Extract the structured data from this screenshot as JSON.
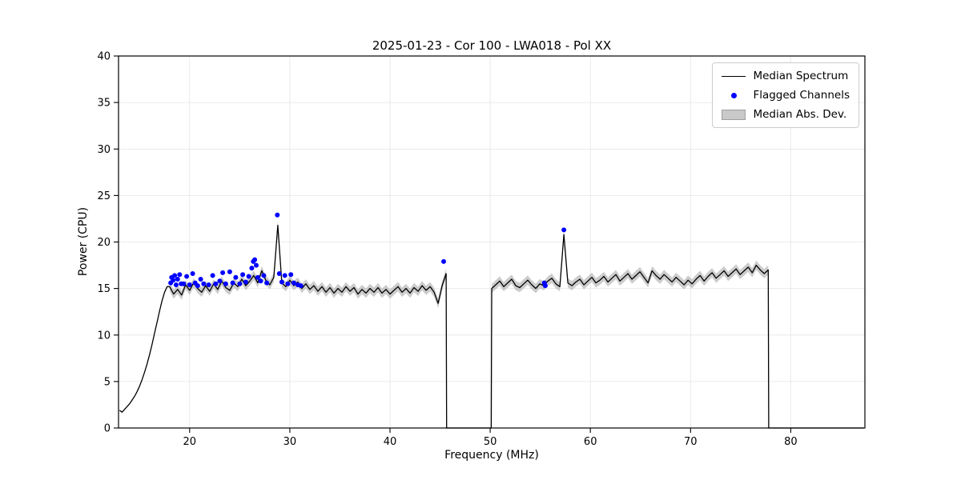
{
  "chart_data": {
    "type": "line",
    "title": "2025-01-23 - Cor 100 - LWA018 - Pol XX",
    "xlabel": "Frequency (MHz)",
    "ylabel": "Power (CPU)",
    "xlim": [
      12.9,
      87.4
    ],
    "ylim": [
      0,
      40
    ],
    "xticks": [
      20,
      30,
      40,
      50,
      60,
      70,
      80
    ],
    "yticks": [
      0,
      5,
      10,
      15,
      20,
      25,
      30,
      35,
      40
    ],
    "grid": true,
    "line_color": "#000000",
    "flag_color": "#0000ff",
    "band_color": "#aaaaaa",
    "band_halfwidth": 0.5,
    "legend": [
      {
        "label": "Median Spectrum",
        "type": "line",
        "color": "#000000"
      },
      {
        "label": "Flagged Channels",
        "type": "dot",
        "color": "#0000ff"
      },
      {
        "label": "Median Abs. Dev.",
        "type": "band",
        "color": "#aaaaaa"
      }
    ],
    "segments": [
      {
        "name": "low-frequency-ramp",
        "x0": 13.0,
        "dx": 0.25,
        "band": false,
        "y": [
          1.9,
          1.7,
          2.0,
          2.3,
          2.6,
          3.0,
          3.4,
          3.9,
          4.5,
          5.2,
          6.0,
          6.9,
          7.9,
          9.0,
          10.2,
          11.4,
          12.6,
          13.7,
          14.6,
          15.2
        ]
      },
      {
        "name": "plateau-1",
        "x0": 18.0,
        "dx": 0.4,
        "band": true,
        "y": [
          15.2,
          14.4,
          14.9,
          14.3,
          15.4,
          14.8,
          15.6,
          15.0,
          14.6,
          15.3,
          14.7,
          15.5,
          14.9,
          15.8,
          15.1,
          14.8,
          15.6,
          15.2,
          16.0,
          15.3,
          15.8,
          16.4,
          15.6,
          16.9,
          15.9,
          15.4,
          16.2,
          21.8,
          15.6,
          15.2,
          15.9,
          15.3,
          15.7,
          15.0,
          15.5,
          14.9,
          15.3,
          14.7,
          15.2,
          14.6,
          15.1,
          14.5,
          15.0,
          14.6,
          15.2,
          14.7,
          15.1,
          14.4,
          14.9,
          14.5,
          15.0,
          14.6,
          15.1,
          14.5,
          14.9,
          14.4,
          14.8,
          15.2,
          14.6,
          15.0,
          14.5,
          15.1,
          14.7,
          15.3,
          14.8,
          15.2,
          14.6,
          13.4,
          15.3,
          16.6
        ]
      },
      {
        "name": "notch-1",
        "x0": 45.65,
        "dx": 0.445,
        "band": false,
        "y": [
          0,
          0,
          0,
          0,
          0,
          0,
          0,
          0,
          0,
          0,
          0
        ]
      },
      {
        "name": "plateau-2",
        "x0": 50.15,
        "dx": 0.4,
        "band": true,
        "y": [
          15.0,
          15.4,
          15.8,
          15.2,
          15.6,
          16.0,
          15.3,
          15.1,
          15.5,
          15.9,
          15.4,
          15.0,
          15.5,
          15.3,
          15.8,
          16.1,
          15.5,
          15.2,
          20.8,
          15.6,
          15.3,
          15.7,
          16.0,
          15.4,
          15.8,
          16.2,
          15.6,
          15.9,
          16.3,
          15.7,
          16.1,
          16.5,
          15.8,
          16.2,
          16.6,
          16.0,
          16.4,
          16.8,
          16.2,
          15.6,
          16.9,
          16.4,
          16.0,
          16.5,
          16.1,
          15.7,
          16.2,
          15.8,
          15.4,
          15.9,
          15.5,
          16.0,
          16.4,
          15.8,
          16.3,
          16.7,
          16.1,
          16.5,
          16.9,
          16.3,
          16.7,
          17.1,
          16.5,
          16.9,
          17.3,
          16.7,
          17.5,
          17.0,
          16.6,
          17.0
        ]
      },
      {
        "name": "high-frequency-cutoff",
        "x0": 77.8,
        "dx": 0.5,
        "band": false,
        "y": [
          0,
          0,
          0,
          0,
          0,
          0,
          0,
          0,
          0,
          0,
          0,
          0,
          0,
          0,
          0,
          0,
          0,
          0,
          0,
          0
        ]
      }
    ],
    "flagged": [
      [
        18.1,
        15.6
      ],
      [
        18.2,
        16.2
      ],
      [
        18.35,
        15.9
      ],
      [
        18.5,
        16.4
      ],
      [
        18.65,
        15.4
      ],
      [
        18.8,
        16.0
      ],
      [
        19.0,
        16.5
      ],
      [
        19.15,
        15.5
      ],
      [
        19.4,
        15.5
      ],
      [
        19.7,
        16.3
      ],
      [
        20.0,
        15.4
      ],
      [
        20.3,
        16.6
      ],
      [
        20.55,
        15.6
      ],
      [
        20.8,
        15.3
      ],
      [
        21.1,
        16.0
      ],
      [
        21.4,
        15.5
      ],
      [
        21.9,
        15.4
      ],
      [
        22.3,
        16.4
      ],
      [
        22.6,
        15.5
      ],
      [
        23.0,
        15.8
      ],
      [
        23.3,
        16.7
      ],
      [
        23.6,
        15.5
      ],
      [
        24.0,
        16.8
      ],
      [
        24.3,
        15.6
      ],
      [
        24.6,
        16.2
      ],
      [
        25.0,
        15.5
      ],
      [
        25.3,
        16.5
      ],
      [
        25.6,
        15.7
      ],
      [
        25.9,
        16.3
      ],
      [
        26.2,
        17.2
      ],
      [
        26.35,
        17.9
      ],
      [
        26.5,
        18.1
      ],
      [
        26.65,
        17.5
      ],
      [
        26.8,
        16.2
      ],
      [
        27.1,
        15.8
      ],
      [
        27.4,
        16.4
      ],
      [
        27.7,
        15.6
      ],
      [
        28.75,
        22.9
      ],
      [
        28.95,
        16.6
      ],
      [
        29.2,
        15.7
      ],
      [
        29.5,
        16.4
      ],
      [
        29.8,
        15.5
      ],
      [
        30.1,
        16.5
      ],
      [
        30.4,
        15.6
      ],
      [
        30.8,
        15.4
      ],
      [
        31.1,
        15.3
      ],
      [
        45.35,
        17.9
      ],
      [
        55.4,
        15.6
      ],
      [
        55.5,
        15.3
      ],
      [
        57.35,
        21.3
      ]
    ]
  }
}
